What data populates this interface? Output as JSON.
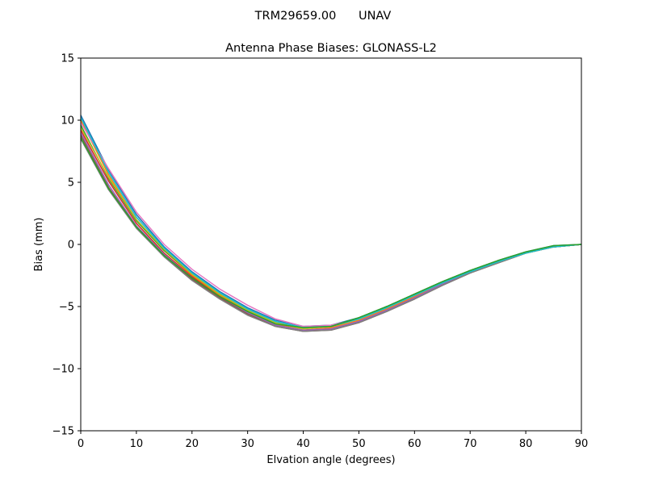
{
  "figure": {
    "suptitle": "TRM29659.00      UNAV"
  },
  "chart_data": {
    "type": "line",
    "title": "Antenna Phase Biases: GLONASS-L2",
    "xlabel": "Elvation angle (degrees)",
    "ylabel": "Bias (mm)",
    "xlim": [
      0,
      90
    ],
    "ylim": [
      -15,
      15
    ],
    "xticks": [
      0,
      10,
      20,
      30,
      40,
      50,
      60,
      70,
      80,
      90
    ],
    "yticks": [
      -15,
      -10,
      -5,
      0,
      5,
      10,
      15
    ],
    "xtick_labels": [
      "0",
      "10",
      "20",
      "30",
      "40",
      "50",
      "60",
      "70",
      "80",
      "90"
    ],
    "ytick_labels": [
      "−15",
      "−10",
      "−5",
      "0",
      "5",
      "10",
      "15"
    ],
    "grid": false,
    "legend": "none",
    "x": [
      0,
      5,
      10,
      15,
      20,
      25,
      30,
      35,
      40,
      45,
      50,
      55,
      60,
      65,
      70,
      75,
      80,
      85,
      90
    ],
    "series": [
      {
        "color": "#1f77b4",
        "values": [
          10.4,
          6.0,
          2.4,
          -0.2,
          -2.2,
          -3.8,
          -5.1,
          -6.1,
          -6.6,
          -6.5,
          -5.9,
          -5.0,
          -4.0,
          -3.0,
          -2.1,
          -1.3,
          -0.6,
          -0.1,
          0.0
        ]
      },
      {
        "color": "#ff7f0e",
        "values": [
          10.0,
          5.6,
          2.0,
          -0.5,
          -2.5,
          -4.1,
          -5.4,
          -6.4,
          -6.9,
          -6.7,
          -6.1,
          -5.2,
          -4.2,
          -3.1,
          -2.2,
          -1.4,
          -0.7,
          -0.2,
          0.0
        ]
      },
      {
        "color": "#2ca02c",
        "values": [
          9.6,
          5.3,
          1.9,
          -0.5,
          -2.4,
          -4.0,
          -5.3,
          -6.3,
          -6.7,
          -6.6,
          -5.9,
          -5.0,
          -4.0,
          -3.0,
          -2.1,
          -1.3,
          -0.7,
          -0.2,
          0.0
        ]
      },
      {
        "color": "#d62728",
        "values": [
          9.2,
          5.1,
          1.7,
          -0.7,
          -2.6,
          -4.2,
          -5.5,
          -6.5,
          -6.9,
          -6.8,
          -6.2,
          -5.3,
          -4.3,
          -3.2,
          -2.2,
          -1.4,
          -0.7,
          -0.2,
          0.0
        ]
      },
      {
        "color": "#9467bd",
        "values": [
          9.0,
          4.8,
          1.5,
          -0.8,
          -2.7,
          -4.3,
          -5.5,
          -6.5,
          -6.9,
          -6.8,
          -6.2,
          -5.3,
          -4.3,
          -3.2,
          -2.3,
          -1.4,
          -0.7,
          -0.2,
          0.0
        ]
      },
      {
        "color": "#8c564b",
        "values": [
          8.8,
          4.6,
          1.4,
          -0.9,
          -2.8,
          -4.3,
          -5.6,
          -6.6,
          -7.0,
          -6.9,
          -6.3,
          -5.4,
          -4.4,
          -3.3,
          -2.3,
          -1.5,
          -0.7,
          -0.2,
          0.0
        ]
      },
      {
        "color": "#e377c2",
        "values": [
          9.8,
          6.1,
          2.6,
          0.0,
          -2.0,
          -3.6,
          -4.9,
          -6.0,
          -6.6,
          -6.5,
          -6.0,
          -5.1,
          -4.1,
          -3.1,
          -2.2,
          -1.4,
          -0.7,
          -0.2,
          0.0
        ]
      },
      {
        "color": "#7f7f7f",
        "values": [
          8.5,
          4.4,
          1.3,
          -1.0,
          -2.9,
          -4.4,
          -5.7,
          -6.6,
          -7.0,
          -6.9,
          -6.3,
          -5.4,
          -4.4,
          -3.3,
          -2.3,
          -1.5,
          -0.7,
          -0.2,
          0.0
        ]
      },
      {
        "color": "#bcbd22",
        "values": [
          9.4,
          5.4,
          2.0,
          -0.4,
          -2.4,
          -4.0,
          -5.3,
          -6.3,
          -6.8,
          -6.6,
          -6.0,
          -5.1,
          -4.1,
          -3.1,
          -2.2,
          -1.4,
          -0.7,
          -0.2,
          0.0
        ]
      },
      {
        "color": "#17becf",
        "values": [
          10.2,
          5.8,
          2.2,
          -0.3,
          -2.3,
          -3.9,
          -5.2,
          -6.2,
          -6.7,
          -6.6,
          -6.0,
          -5.1,
          -4.1,
          -3.1,
          -2.2,
          -1.4,
          -0.7,
          -0.2,
          0.0
        ]
      },
      {
        "color": "#2ca02c",
        "values": [
          8.6,
          4.5,
          1.4,
          -0.9,
          -2.7,
          -4.2,
          -5.4,
          -6.4,
          -6.7,
          -6.6,
          -5.9,
          -5.0,
          -4.0,
          -3.0,
          -2.1,
          -1.3,
          -0.6,
          -0.1,
          0.0
        ]
      }
    ]
  }
}
